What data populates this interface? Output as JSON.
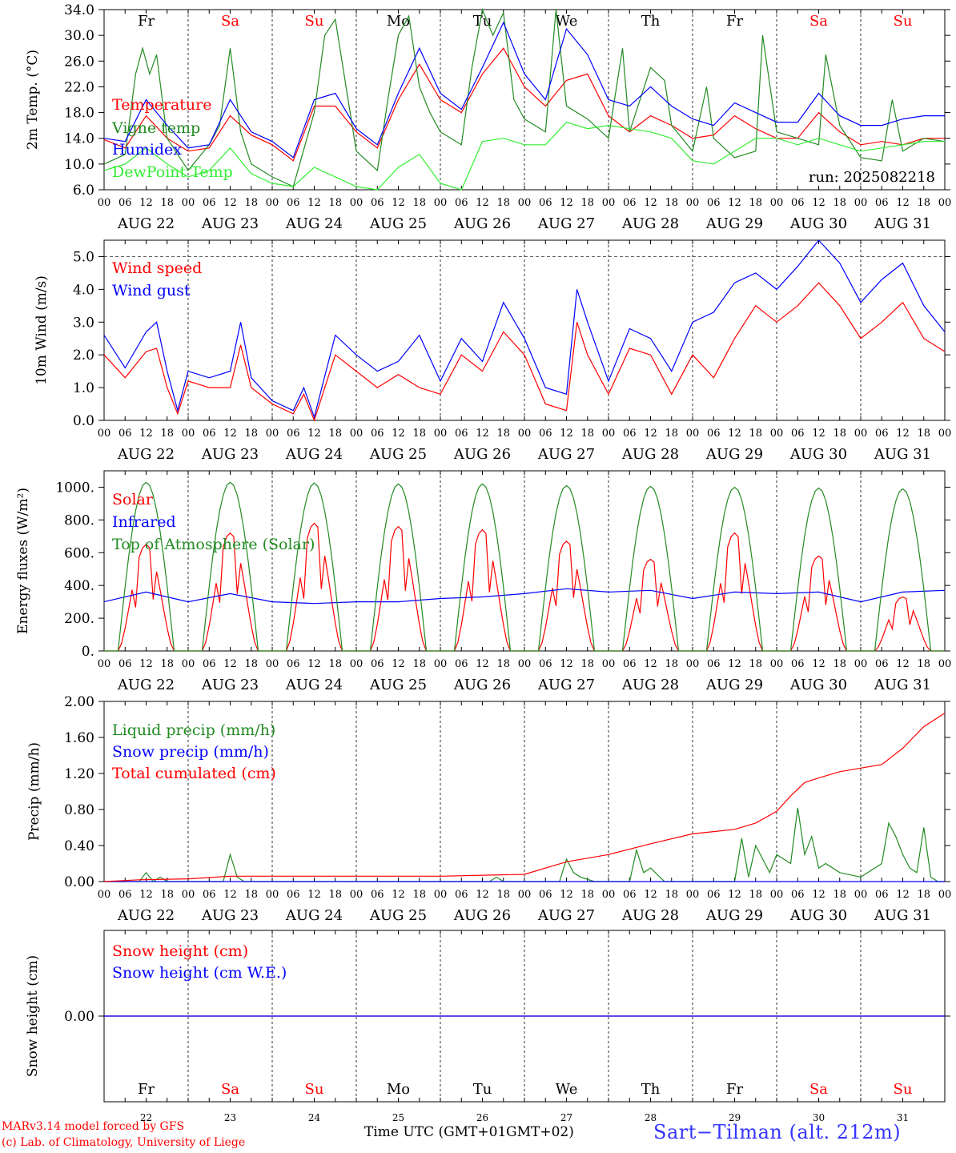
{
  "chart_data": [
    {
      "type": "line",
      "ylabel": "2m Temp. (°C)",
      "ylim": [
        6.0,
        34.0
      ],
      "yticks": [
        "6.0",
        "10.0",
        "14.0",
        "18.0",
        "22.0",
        "26.0",
        "30.0",
        "34.0"
      ],
      "day_names": [
        "Fr",
        "Sa",
        "Su",
        "Mo",
        "Tu",
        "We",
        "Th",
        "Fr",
        "Sa",
        "Su"
      ],
      "annotation": "run: 2025082218",
      "hour_ticks": [
        "00",
        "06",
        "12",
        "18"
      ],
      "date_labels": [
        "AUG 22",
        "AUG 23",
        "AUG 24",
        "AUG 25",
        "AUG 26",
        "AUG 27",
        "AUG 28",
        "AUG 29",
        "AUG 30",
        "AUG 31"
      ],
      "legend_placement": "left",
      "series": [
        {
          "name": "Temperature",
          "color": "#ff0000",
          "x": [
            0,
            6,
            12,
            18,
            24,
            30,
            36,
            42,
            48,
            54,
            60,
            66,
            72,
            78,
            84,
            90,
            96,
            102,
            108,
            114,
            120,
            126,
            132,
            138,
            144,
            150,
            156,
            162,
            168,
            174,
            180,
            186,
            192,
            198,
            204,
            210,
            216,
            222,
            228,
            234,
            240
          ],
          "values": [
            13.8,
            12.5,
            17.5,
            14.0,
            12.0,
            12.5,
            17.5,
            14.5,
            13.0,
            10.5,
            19.0,
            19.0,
            15.0,
            12.5,
            20.0,
            25.5,
            20.0,
            18.0,
            24.0,
            28.0,
            22.0,
            19.0,
            23.0,
            24.0,
            17.5,
            15.0,
            17.5,
            16.0,
            14.0,
            14.5,
            17.5,
            15.5,
            14.0,
            14.0,
            18.0,
            15.0,
            13.0,
            13.5,
            13.0,
            14.0,
            14.0
          ]
        },
        {
          "name": "Vigne temp",
          "color": "#228b22",
          "x": [
            0,
            6,
            9,
            11,
            13,
            15,
            18,
            24,
            30,
            33,
            36,
            39,
            42,
            48,
            54,
            60,
            63,
            66,
            72,
            78,
            81,
            84,
            87,
            90,
            93,
            96,
            102,
            105,
            108,
            111,
            114,
            117,
            120,
            126,
            129,
            132,
            138,
            144,
            148,
            150,
            156,
            160,
            162,
            168,
            172,
            174,
            180,
            186,
            188,
            192,
            198,
            204,
            206,
            210,
            216,
            222,
            225,
            228,
            234,
            240
          ],
          "values": [
            10.0,
            11.5,
            24.0,
            28.0,
            24.0,
            27.0,
            14.0,
            9.0,
            13.0,
            16.0,
            28.0,
            15.0,
            10.0,
            8.0,
            6.5,
            18.0,
            30.0,
            32.5,
            12.0,
            9.0,
            20.0,
            30.0,
            33.0,
            22.0,
            18.0,
            15.0,
            13.0,
            25.0,
            34.0,
            30.0,
            33.5,
            20.0,
            17.0,
            15.0,
            34.0,
            19.0,
            17.0,
            14.0,
            28.0,
            15.0,
            25.0,
            23.0,
            16.0,
            12.0,
            22.0,
            14.0,
            11.0,
            12.0,
            30.0,
            15.0,
            14.0,
            13.0,
            27.0,
            16.0,
            11.0,
            10.5,
            20.0,
            12.0,
            14.0,
            13.5
          ]
        },
        {
          "name": "Humidex",
          "color": "#0000ff",
          "x": [
            0,
            6,
            12,
            18,
            24,
            30,
            36,
            42,
            48,
            54,
            60,
            66,
            72,
            78,
            84,
            90,
            96,
            102,
            108,
            114,
            120,
            126,
            132,
            138,
            144,
            150,
            156,
            162,
            168,
            174,
            180,
            186,
            192,
            198,
            204,
            210,
            216,
            222,
            228,
            234,
            240
          ],
          "values": [
            14.0,
            13.5,
            20.0,
            16.0,
            12.5,
            13.0,
            20.0,
            15.0,
            13.5,
            11.0,
            20.0,
            21.0,
            15.5,
            13.0,
            21.0,
            28.0,
            21.0,
            18.5,
            25.0,
            32.0,
            24.0,
            20.0,
            31.0,
            27.0,
            20.0,
            19.0,
            22.0,
            19.0,
            17.0,
            16.0,
            19.5,
            18.0,
            16.5,
            16.5,
            21.0,
            17.5,
            16.0,
            16.0,
            17.0,
            17.5,
            17.5
          ]
        },
        {
          "name": "DewPoint Temp",
          "color": "#32ee32",
          "x": [
            0,
            6,
            12,
            18,
            24,
            30,
            36,
            42,
            48,
            54,
            60,
            66,
            72,
            78,
            84,
            90,
            96,
            102,
            108,
            114,
            120,
            126,
            132,
            138,
            144,
            150,
            156,
            162,
            168,
            174,
            180,
            186,
            192,
            198,
            204,
            210,
            216,
            222,
            228,
            234,
            240
          ],
          "values": [
            9.0,
            10.0,
            12.5,
            10.0,
            8.0,
            9.0,
            12.5,
            8.5,
            7.0,
            6.5,
            9.5,
            8.0,
            6.5,
            6.0,
            9.5,
            11.5,
            7.0,
            6.0,
            13.5,
            14.0,
            13.0,
            13.0,
            16.5,
            15.5,
            16.0,
            15.5,
            15.0,
            14.0,
            10.5,
            10.0,
            12.0,
            14.0,
            14.0,
            13.0,
            14.0,
            13.0,
            12.0,
            12.5,
            13.0,
            13.5,
            13.5
          ]
        }
      ]
    },
    {
      "type": "line",
      "ylabel": "10m Wind (m/s)",
      "ylim": [
        0.0,
        5.5
      ],
      "yticks": [
        "0.0",
        "1.0",
        "2.0",
        "3.0",
        "4.0",
        "5.0"
      ],
      "reference_line": 5.0,
      "hour_ticks": [
        "00",
        "06",
        "12",
        "18"
      ],
      "date_labels": [
        "AUG 22",
        "AUG 23",
        "AUG 24",
        "AUG 25",
        "AUG 26",
        "AUG 27",
        "AUG 28",
        "AUG 29",
        "AUG 30",
        "AUG 31"
      ],
      "series": [
        {
          "name": "Wind speed",
          "color": "#ff0000",
          "x": [
            0,
            6,
            12,
            15,
            18,
            21,
            24,
            30,
            36,
            39,
            42,
            48,
            54,
            57,
            60,
            66,
            72,
            78,
            84,
            90,
            96,
            102,
            108,
            114,
            120,
            126,
            132,
            135,
            138,
            144,
            150,
            156,
            162,
            168,
            174,
            180,
            186,
            192,
            198,
            204,
            210,
            216,
            222,
            228,
            234,
            240
          ],
          "values": [
            2.0,
            1.3,
            2.1,
            2.2,
            1.0,
            0.2,
            1.2,
            1.0,
            1.0,
            2.3,
            1.0,
            0.5,
            0.2,
            0.8,
            0.0,
            2.0,
            1.5,
            1.0,
            1.4,
            1.0,
            0.8,
            2.0,
            1.5,
            2.7,
            2.0,
            0.5,
            0.3,
            3.0,
            2.0,
            0.8,
            2.2,
            2.0,
            0.8,
            2.0,
            1.3,
            2.5,
            3.5,
            3.0,
            3.5,
            4.2,
            3.5,
            2.5,
            3.0,
            3.6,
            2.5,
            2.1
          ]
        },
        {
          "name": "Wind gust",
          "color": "#0000ff",
          "x": [
            0,
            6,
            12,
            15,
            18,
            21,
            24,
            30,
            36,
            39,
            42,
            48,
            54,
            57,
            60,
            66,
            72,
            78,
            84,
            90,
            96,
            102,
            108,
            114,
            120,
            126,
            132,
            135,
            138,
            144,
            150,
            156,
            162,
            168,
            174,
            180,
            186,
            192,
            198,
            204,
            210,
            216,
            222,
            228,
            234,
            240
          ],
          "values": [
            2.6,
            1.6,
            2.7,
            3.0,
            1.5,
            0.3,
            1.5,
            1.3,
            1.5,
            3.0,
            1.3,
            0.6,
            0.3,
            1.0,
            0.1,
            2.6,
            2.0,
            1.5,
            1.8,
            2.6,
            1.2,
            2.5,
            1.8,
            3.6,
            2.5,
            1.0,
            0.8,
            4.0,
            3.0,
            1.2,
            2.8,
            2.5,
            1.5,
            3.0,
            3.3,
            4.2,
            4.5,
            4.0,
            4.7,
            5.5,
            4.8,
            3.6,
            4.3,
            4.8,
            3.5,
            2.7
          ]
        }
      ]
    },
    {
      "type": "line",
      "ylabel": "Energy fluxes (W/m²)",
      "ylim": [
        0,
        1100
      ],
      "yticks": [
        "0.",
        "200.",
        "400.",
        "600.",
        "800.",
        "1000."
      ],
      "hour_ticks": [
        "00",
        "06",
        "12",
        "18"
      ],
      "date_labels": [
        "AUG 22",
        "AUG 23",
        "AUG 24",
        "AUG 25",
        "AUG 26",
        "AUG 27",
        "AUG 28",
        "AUG 29",
        "AUG 30",
        "AUG 31"
      ],
      "series": [
        {
          "name": "Solar",
          "color": "#ff0000",
          "day_peaks": [
            650,
            720,
            780,
            760,
            740,
            670,
            560,
            720,
            580,
            330
          ]
        },
        {
          "name": "Infrared",
          "color": "#0000ff",
          "x": [
            0,
            12,
            24,
            36,
            48,
            60,
            72,
            84,
            96,
            108,
            120,
            132,
            144,
            156,
            168,
            180,
            192,
            204,
            216,
            228,
            240
          ],
          "values": [
            300,
            360,
            300,
            350,
            300,
            290,
            300,
            300,
            320,
            330,
            350,
            380,
            360,
            370,
            320,
            360,
            350,
            360,
            300,
            360,
            370
          ]
        },
        {
          "name": "Top of Atmosphere (Solar)",
          "color": "#228b22",
          "day_peaks": [
            1030,
            1030,
            1025,
            1020,
            1020,
            1010,
            1005,
            1000,
            995,
            990
          ]
        }
      ]
    },
    {
      "type": "line",
      "ylabel": "Precip (mm/h)",
      "ylim": [
        0.0,
        2.0
      ],
      "yticks": [
        "0.00",
        "0.40",
        "0.80",
        "1.20",
        "1.60",
        "2.00"
      ],
      "hour_ticks": [
        "00",
        "06",
        "12",
        "18"
      ],
      "date_labels": [
        "AUG 22",
        "AUG 23",
        "AUG 24",
        "AUG 25",
        "AUG 26",
        "AUG 27",
        "AUG 28",
        "AUG 29",
        "AUG 30",
        "AUG 31"
      ],
      "series": [
        {
          "name": "Liquid precip (mm/h)",
          "color": "#228b22",
          "x": [
            0,
            10,
            12,
            14,
            16,
            18,
            24,
            34,
            36,
            38,
            40,
            48,
            96,
            110,
            112,
            114,
            120,
            130,
            132,
            134,
            136,
            140,
            144,
            150,
            152,
            154,
            156,
            160,
            168,
            180,
            182,
            184,
            186,
            190,
            192,
            196,
            198,
            200,
            202,
            204,
            206,
            210,
            216,
            222,
            224,
            226,
            228,
            230,
            232,
            234,
            236,
            238,
            240
          ],
          "values": [
            0,
            0,
            0.1,
            0,
            0.05,
            0,
            0,
            0,
            0.3,
            0.05,
            0,
            0,
            0,
            0,
            0.05,
            0,
            0,
            0,
            0.25,
            0.1,
            0.05,
            0,
            0,
            0,
            0.35,
            0.1,
            0.15,
            0,
            0,
            0,
            0.48,
            0.05,
            0.4,
            0.1,
            0.3,
            0.2,
            0.82,
            0.3,
            0.5,
            0.15,
            0.2,
            0.1,
            0.05,
            0.2,
            0.65,
            0.5,
            0.3,
            0.15,
            0.1,
            0.6,
            0.05,
            0,
            0
          ]
        },
        {
          "name": "Snow precip (mm/h)",
          "color": "#0000ff",
          "x": [
            0,
            240
          ],
          "values": [
            0,
            0
          ]
        },
        {
          "name": "Total cumulated (cm)",
          "color": "#ff0000",
          "x": [
            0,
            10,
            24,
            36,
            48,
            96,
            108,
            120,
            132,
            144,
            156,
            168,
            180,
            186,
            192,
            196,
            200,
            204,
            210,
            216,
            222,
            228,
            234,
            240
          ],
          "values": [
            0,
            0.02,
            0.03,
            0.06,
            0.06,
            0.06,
            0.07,
            0.08,
            0.22,
            0.3,
            0.42,
            0.53,
            0.58,
            0.65,
            0.78,
            0.95,
            1.1,
            1.15,
            1.22,
            1.26,
            1.3,
            1.48,
            1.72,
            1.87
          ]
        }
      ]
    },
    {
      "type": "line",
      "ylabel": "Snow height (cm)",
      "yticks": [
        "0.00"
      ],
      "day_names": [
        "Fr",
        "Sa",
        "Su",
        "Mo",
        "Tu",
        "We",
        "Th",
        "Fr",
        "Sa",
        "Su"
      ],
      "day_numbers": [
        "22",
        "23",
        "24",
        "25",
        "26",
        "27",
        "28",
        "29",
        "30",
        "31"
      ],
      "series": [
        {
          "name": "Snow height (cm)",
          "color": "#ff0000",
          "x": [
            0,
            240
          ],
          "values": [
            0,
            0
          ]
        },
        {
          "name": "Snow height (cm W.E.)",
          "color": "#0000ff",
          "x": [
            0,
            240
          ],
          "values": [
            0,
            0
          ]
        }
      ]
    }
  ],
  "footer": {
    "model_line": "MARv3.14 model forced by GFS",
    "lab_line": "(c) Lab. of Climatology, University of Liege",
    "xlabel": "Time UTC (GMT+01",
    "xlabel_overlap": "GMT+02)",
    "station": "Sart−Tilman (alt. 212m)"
  }
}
